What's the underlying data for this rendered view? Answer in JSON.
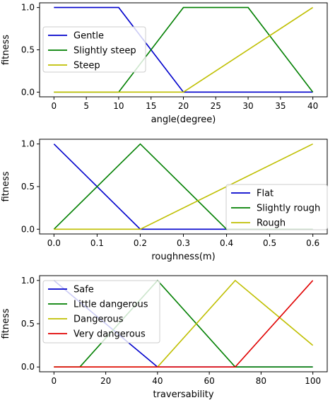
{
  "chart_data": [
    {
      "type": "line",
      "xlabel": "angle(degree)",
      "ylabel": "fitness",
      "xlim": [
        0,
        40
      ],
      "ylim": [
        0,
        1
      ],
      "xticks": [
        0,
        5,
        10,
        15,
        20,
        25,
        30,
        35,
        40
      ],
      "yticks": [
        0.0,
        0.5,
        1.0
      ],
      "ytick_labels": [
        "0.0",
        "0.5",
        "1.0"
      ],
      "grid": false,
      "legend_position": "center-left",
      "series": [
        {
          "name": "Gentle",
          "color": "#0000cc",
          "x": [
            0,
            10,
            20,
            40
          ],
          "y": [
            1,
            1,
            0,
            0
          ]
        },
        {
          "name": "Slightly steep",
          "color": "#007f00",
          "x": [
            0,
            10,
            20,
            30,
            40
          ],
          "y": [
            0,
            0,
            1,
            1,
            0
          ]
        },
        {
          "name": "Steep",
          "color": "#bfbf00",
          "x": [
            0,
            20,
            40
          ],
          "y": [
            0,
            0,
            1
          ]
        }
      ]
    },
    {
      "type": "line",
      "xlabel": "roughness(m)",
      "ylabel": "fitness",
      "xlim": [
        0,
        0.6
      ],
      "ylim": [
        0,
        1
      ],
      "xticks": [
        0.0,
        0.1,
        0.2,
        0.3,
        0.4,
        0.5,
        0.6
      ],
      "xtick_labels": [
        "0.0",
        "0.1",
        "0.2",
        "0.3",
        "0.4",
        "0.5",
        "0.6"
      ],
      "yticks": [
        0.0,
        0.5,
        1.0
      ],
      "ytick_labels": [
        "0.0",
        "0.5",
        "1.0"
      ],
      "grid": false,
      "legend_position": "lower-right",
      "series": [
        {
          "name": "Flat",
          "color": "#0000cc",
          "x": [
            0,
            0.2,
            0.6
          ],
          "y": [
            1,
            0,
            0
          ]
        },
        {
          "name": "Slightly rough",
          "color": "#007f00",
          "x": [
            0,
            0.2,
            0.4,
            0.6
          ],
          "y": [
            0,
            1,
            0,
            0
          ]
        },
        {
          "name": "Rough",
          "color": "#bfbf00",
          "x": [
            0,
            0.2,
            0.6
          ],
          "y": [
            0,
            0,
            1
          ]
        }
      ]
    },
    {
      "type": "line",
      "xlabel": "traversability",
      "ylabel": "fitness",
      "xlim": [
        0,
        100
      ],
      "ylim": [
        0,
        1
      ],
      "xticks": [
        0,
        20,
        40,
        60,
        80,
        100
      ],
      "yticks": [
        0.0,
        0.5,
        1.0
      ],
      "ytick_labels": [
        "0.0",
        "0.5",
        "1.0"
      ],
      "grid": false,
      "legend_position": "upper-left",
      "series": [
        {
          "name": "Safe",
          "color": "#0000cc",
          "x": [
            0,
            40,
            100
          ],
          "y": [
            1,
            0,
            0
          ]
        },
        {
          "name": "Little dangerous",
          "color": "#007f00",
          "x": [
            0,
            10,
            40,
            70,
            100
          ],
          "y": [
            0,
            0,
            1,
            0,
            0
          ]
        },
        {
          "name": "Dangerous",
          "color": "#bfbf00",
          "x": [
            0,
            40,
            70,
            100
          ],
          "y": [
            0,
            0,
            1,
            0.25
          ]
        },
        {
          "name": "Very dangerous",
          "color": "#e00000",
          "x": [
            0,
            70,
            100
          ],
          "y": [
            0,
            0,
            1
          ]
        }
      ]
    }
  ]
}
